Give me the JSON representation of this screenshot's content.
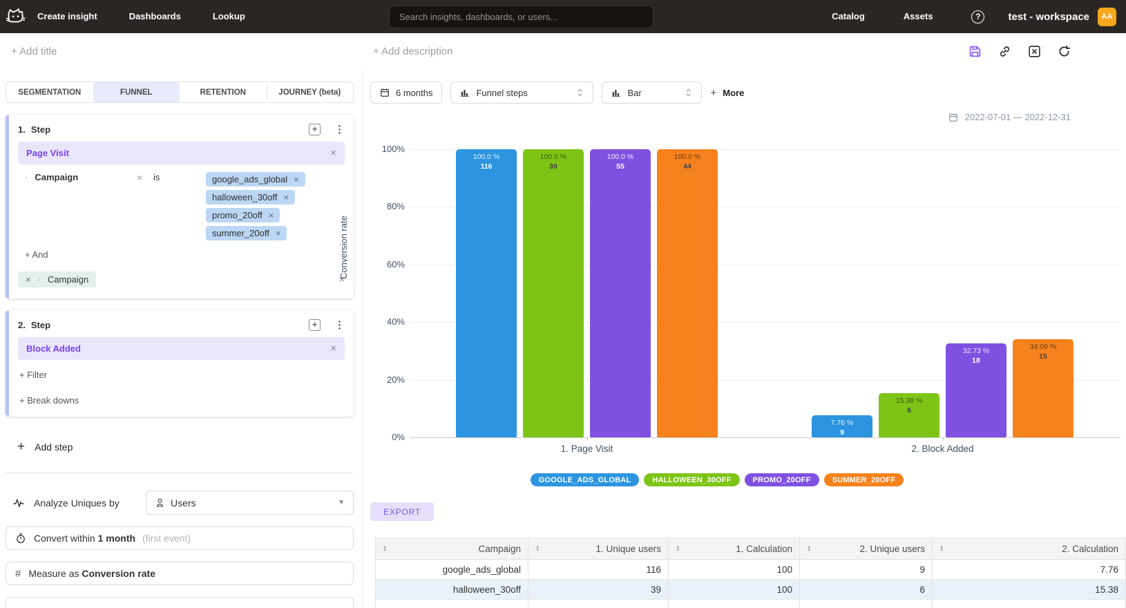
{
  "topbar": {
    "nav_items": [
      {
        "label": "Create insight"
      },
      {
        "label": "Dashboards"
      },
      {
        "label": "Lookup"
      }
    ],
    "search_placeholder": "Search insights, dashboards, or users...",
    "right_items": [
      {
        "label": "Catalog"
      },
      {
        "label": "Assets"
      }
    ],
    "help_label": "?",
    "workspace_name": "test - workspace",
    "avatar_initials": "AA"
  },
  "titlebar": {
    "add_title_placeholder": "+ Add title",
    "add_description_placeholder": "+ Add description"
  },
  "left_panel": {
    "tabs": [
      {
        "label": "SEGMENTATION",
        "active": false
      },
      {
        "label": "FUNNEL",
        "active": true
      },
      {
        "label": "RETENTION",
        "active": false
      },
      {
        "label": "JOURNEY (beta)",
        "active": false
      }
    ],
    "steps": [
      {
        "number": "1.",
        "title": "Step",
        "event": "Page Visit",
        "filter": {
          "property": "Campaign",
          "operator": "is",
          "values": [
            "google_ads_global",
            "halloween_30off",
            "promo_20off",
            "summer_20off"
          ]
        },
        "and_label": "+ And",
        "breakdown": {
          "property": "Campaign"
        }
      },
      {
        "number": "2.",
        "title": "Step",
        "event": "Block Added",
        "filter_label": "+ Filter",
        "breakdowns_label": "+ Break downs"
      }
    ],
    "add_step_label": "Add step",
    "analyze": {
      "label": "Analyze Uniques by",
      "value": "Users"
    },
    "convert": {
      "label": "Convert within",
      "value": "1 month",
      "hint": "(first event)"
    },
    "measure": {
      "label": "Measure as",
      "value": "Conversion rate"
    }
  },
  "chart_controls": {
    "date_preset": "6 months",
    "view_type": "Funnel steps",
    "chart_type": "Bar",
    "more_label": "More",
    "date_range": "2022-07-01 — 2022-12-31"
  },
  "chart_data": {
    "type": "bar",
    "title": "",
    "ylabel": "Conversion rate",
    "ylim": [
      0,
      100
    ],
    "yticks": [
      0,
      20,
      40,
      60,
      80,
      100
    ],
    "ytick_suffix": "%",
    "grid": true,
    "legend_position": "bottom",
    "categories": [
      "1. Page Visit",
      "2. Block Added"
    ],
    "series": [
      {
        "name": "GOOGLE_ADS_GLOBAL",
        "color": "#2d95e0",
        "values": [
          100.0,
          7.76
        ],
        "labels": [
          "100.0 %",
          "7.76 %"
        ],
        "counts": [
          116,
          9
        ]
      },
      {
        "name": "HALLOWEEN_30OFF",
        "color": "#7ec417",
        "values": [
          100.0,
          15.38
        ],
        "labels": [
          "100.0 %",
          "15.38 %"
        ],
        "counts": [
          39,
          6
        ]
      },
      {
        "name": "PROMO_20OFF",
        "color": "#8051e1",
        "values": [
          100.0,
          32.73
        ],
        "labels": [
          "100.0 %",
          "32.73 %"
        ],
        "counts": [
          55,
          18
        ]
      },
      {
        "name": "SUMMER_20OFF",
        "color": "#f5821c",
        "values": [
          100.0,
          34.09
        ],
        "labels": [
          "100.0 %",
          "34.09 %"
        ],
        "counts": [
          44,
          15
        ]
      }
    ]
  },
  "export_label": "EXPORT",
  "table": {
    "headers": [
      "Campaign",
      "1. Unique users",
      "1. Calculation",
      "2. Unique users",
      "2. Calculation"
    ],
    "rows": [
      [
        "google_ads_global",
        "116",
        "100",
        "9",
        "7.76"
      ],
      [
        "halloween_30off",
        "39",
        "100",
        "6",
        "15.38"
      ]
    ]
  }
}
